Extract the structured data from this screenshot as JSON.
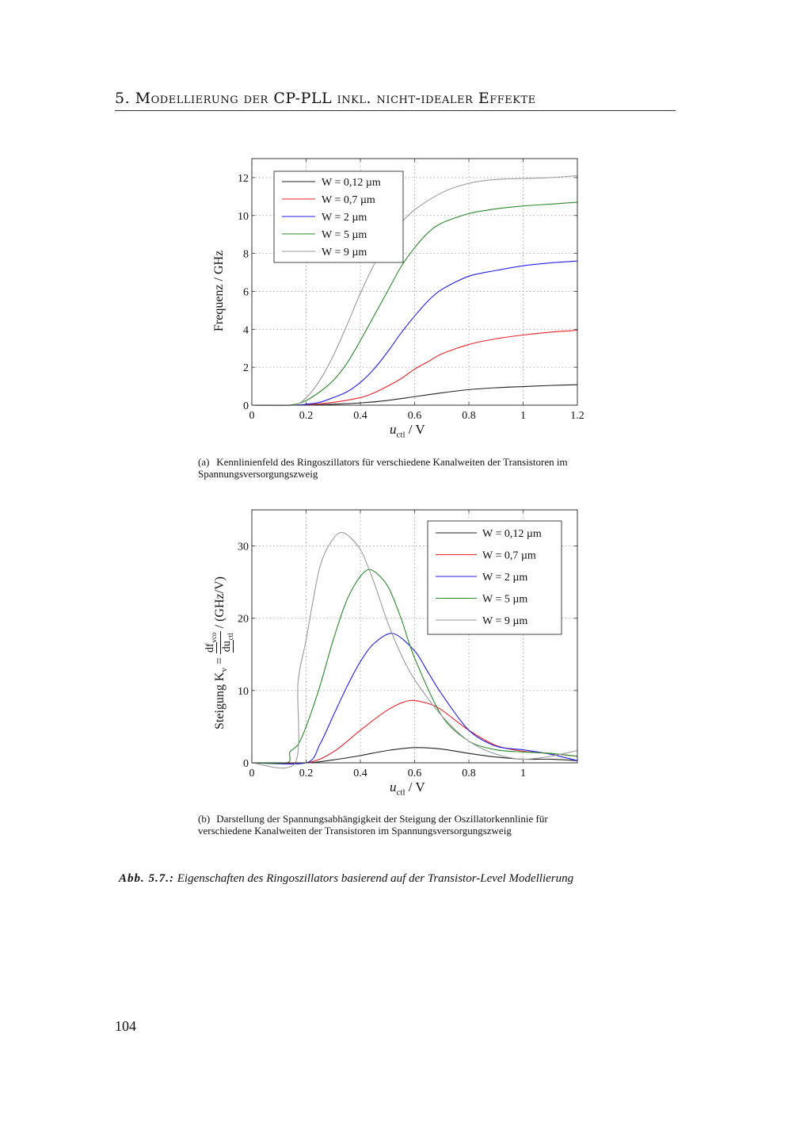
{
  "header": {
    "running_head": "5. Modellierung der CP-PLL inkl. nicht-idealer Effekte"
  },
  "figure": {
    "number_label": "Abb. 5.7.:",
    "caption": "Eigenschaften des Ringoszillators basierend auf der Transistor-Level Modellierung",
    "subcaption_a_label": "(a)",
    "subcaption_a": "Kennlinienfeld des Ringoszillators für verschiedene Kanalweiten der Transistoren im Spannungsversorgungszweig",
    "subcaption_b_label": "(b)",
    "subcaption_b": "Darstellung der Spannungsabhängigkeit der Steigung der Oszillatorkennlinie für verschiedene Kanalweiten der Transistoren im Spannungsversorgungszweig"
  },
  "page_number": "104",
  "ylabel_b_parts": {
    "prefix": "Steigung K",
    "sub": "v",
    "eq": " = ",
    "num": "df",
    "num_sub": "vco",
    "den": "du",
    "den_sub": "ctl",
    "unit": " / (GHz/V)"
  },
  "xlabel_parts": {
    "var": "u",
    "sub": "ctl",
    "unit": " / V"
  },
  "chart_data": [
    {
      "type": "line",
      "title": "",
      "xlabel": "u_ctl / V",
      "ylabel": "Frequenz / GHz",
      "xlim": [
        0,
        1.2
      ],
      "ylim": [
        0,
        13
      ],
      "xticks": [
        "0",
        "0.2",
        "0.4",
        "0.6",
        "0.8",
        "1",
        "1.2"
      ],
      "xtick_values": [
        0,
        0.2,
        0.4,
        0.6,
        0.8,
        1,
        1.2
      ],
      "yticks": [
        "0",
        "2",
        "4",
        "6",
        "8",
        "10",
        "12"
      ],
      "ytick_values": [
        0,
        2,
        4,
        6,
        8,
        10,
        12
      ],
      "grid": true,
      "legend_position": "top-left",
      "series": [
        {
          "name": "W = 0,12 µm",
          "color": "#222222",
          "x": [
            0,
            0.15,
            0.2,
            0.3,
            0.4,
            0.5,
            0.6,
            0.7,
            0.8,
            0.9,
            1.0,
            1.1,
            1.2
          ],
          "y": [
            0,
            0,
            0.01,
            0.05,
            0.12,
            0.25,
            0.45,
            0.65,
            0.82,
            0.92,
            0.98,
            1.04,
            1.08
          ]
        },
        {
          "name": "W = 0,7 µm",
          "color": "#e8232a",
          "x": [
            0,
            0.15,
            0.2,
            0.3,
            0.4,
            0.45,
            0.5,
            0.55,
            0.6,
            0.65,
            0.7,
            0.8,
            0.9,
            1.0,
            1.1,
            1.2
          ],
          "y": [
            0,
            0,
            0.02,
            0.15,
            0.4,
            0.65,
            1.0,
            1.4,
            1.9,
            2.3,
            2.7,
            3.2,
            3.5,
            3.7,
            3.85,
            3.95
          ]
        },
        {
          "name": "W = 2 µm",
          "color": "#2020e8",
          "x": [
            0,
            0.15,
            0.2,
            0.25,
            0.3,
            0.35,
            0.4,
            0.45,
            0.5,
            0.55,
            0.6,
            0.65,
            0.7,
            0.8,
            0.9,
            1.0,
            1.1,
            1.2
          ],
          "y": [
            0,
            0,
            0.05,
            0.15,
            0.4,
            0.7,
            1.2,
            1.9,
            2.8,
            3.8,
            4.7,
            5.5,
            6.1,
            6.8,
            7.1,
            7.35,
            7.5,
            7.6
          ]
        },
        {
          "name": "W = 5 µm",
          "color": "#2a8a2a",
          "x": [
            0,
            0.14,
            0.2,
            0.25,
            0.3,
            0.35,
            0.4,
            0.45,
            0.5,
            0.55,
            0.6,
            0.65,
            0.7,
            0.8,
            0.9,
            1.0,
            1.1,
            1.2
          ],
          "y": [
            0,
            0,
            0.25,
            0.7,
            1.3,
            2.2,
            3.4,
            4.7,
            6.0,
            7.3,
            8.3,
            9.1,
            9.6,
            10.1,
            10.35,
            10.5,
            10.6,
            10.7
          ]
        },
        {
          "name": "W = 9 µm",
          "color": "#9a9a9a",
          "x": [
            0,
            0.15,
            0.2,
            0.25,
            0.3,
            0.35,
            0.4,
            0.45,
            0.5,
            0.55,
            0.6,
            0.7,
            0.8,
            0.9,
            1.0,
            1.1,
            1.2
          ],
          "y": [
            0,
            0,
            0.4,
            1.3,
            2.6,
            4.2,
            5.9,
            7.4,
            8.7,
            9.6,
            10.3,
            11.2,
            11.7,
            11.9,
            11.95,
            12.0,
            12.1
          ]
        }
      ]
    },
    {
      "type": "line",
      "title": "",
      "xlabel": "u_ctl / V",
      "ylabel": "Steigung K_v = df_vco/du_ctl / (GHz/V)",
      "xlim": [
        0,
        1.2
      ],
      "ylim": [
        0,
        35
      ],
      "xticks": [
        "0",
        "0.2",
        "0.4",
        "0.6",
        "0.8",
        "1"
      ],
      "xtick_values": [
        0,
        0.2,
        0.4,
        0.6,
        0.8,
        1
      ],
      "yticks": [
        "0",
        "10",
        "20",
        "30"
      ],
      "ytick_values": [
        0,
        10,
        20,
        30
      ],
      "grid": true,
      "legend_position": "top-right",
      "series": [
        {
          "name": "W = 0,12 µm",
          "color": "#222222",
          "x": [
            0,
            0.2,
            0.3,
            0.4,
            0.5,
            0.6,
            0.7,
            0.8,
            0.9,
            1.0,
            1.1,
            1.2
          ],
          "y": [
            0,
            0,
            0.4,
            1.0,
            1.7,
            2.1,
            1.9,
            1.3,
            0.8,
            0.5,
            0.5,
            0.3
          ]
        },
        {
          "name": "W = 0,7 µm",
          "color": "#e8232a",
          "x": [
            0,
            0.2,
            0.3,
            0.4,
            0.5,
            0.58,
            0.65,
            0.7,
            0.8,
            0.9,
            1.0,
            1.1,
            1.2
          ],
          "y": [
            0,
            0,
            1.5,
            4.5,
            7.3,
            8.6,
            8.2,
            7.3,
            4.5,
            2.4,
            1.6,
            1.3,
            0.9
          ]
        },
        {
          "name": "W = 2 µm",
          "color": "#2020e8",
          "x": [
            0,
            0.2,
            0.25,
            0.3,
            0.35,
            0.4,
            0.45,
            0.52,
            0.6,
            0.65,
            0.7,
            0.8,
            0.9,
            1.0,
            1.1,
            1.2
          ],
          "y": [
            0,
            0,
            2.5,
            6.5,
            10.5,
            14,
            16.5,
            17.9,
            15.5,
            12.5,
            9.5,
            4.5,
            2.3,
            1.8,
            1.2,
            0.3
          ]
        },
        {
          "name": "W = 5 µm",
          "color": "#2a8a2a",
          "x": [
            0,
            0.13,
            0.14,
            0.17,
            0.2,
            0.25,
            0.3,
            0.35,
            0.4,
            0.44,
            0.5,
            0.55,
            0.6,
            0.7,
            0.8,
            0.9,
            1.0,
            1.1,
            1.2
          ],
          "y": [
            0,
            0,
            1.5,
            2.5,
            5,
            10.5,
            17,
            22.5,
            25.8,
            26.7,
            24.5,
            20,
            14.5,
            6.5,
            3.0,
            1.8,
            1.5,
            1.3,
            0.9
          ]
        },
        {
          "name": "W = 9 µm",
          "color": "#9a9a9a",
          "x": [
            0,
            0.16,
            0.17,
            0.2,
            0.25,
            0.3,
            0.34,
            0.4,
            0.45,
            0.5,
            0.55,
            0.6,
            0.7,
            0.8,
            0.9,
            1.0,
            1.1,
            1.2
          ],
          "y": [
            0,
            0,
            11,
            17,
            27,
            31,
            31.8,
            29.5,
            25,
            19.5,
            15,
            11.5,
            6.5,
            3.0,
            1.2,
            0.5,
            0.9,
            1.7
          ]
        }
      ]
    }
  ]
}
